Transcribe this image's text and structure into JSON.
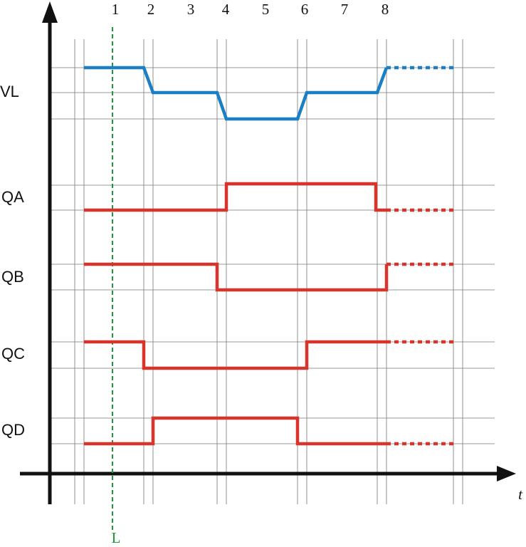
{
  "columns": [
    "1",
    "2",
    "3",
    "4",
    "5",
    "6",
    "7",
    "8"
  ],
  "signals": [
    {
      "label": "VL"
    },
    {
      "label": "QA"
    },
    {
      "label": "QB"
    },
    {
      "label": "QC"
    },
    {
      "label": "QD"
    }
  ],
  "axis_label": "t",
  "marker_label": "L"
}
